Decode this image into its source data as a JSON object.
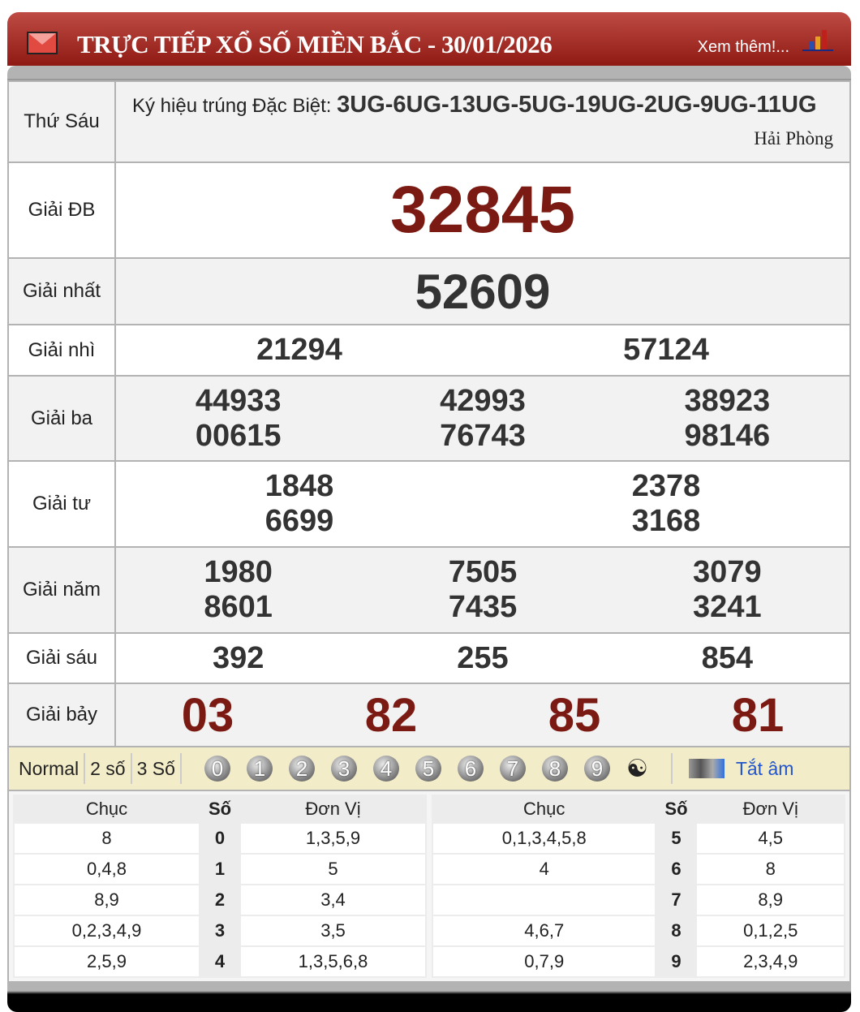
{
  "header": {
    "title": "TRỰC TIẾP XỔ SỐ MIỀN BẮC - 30/01/2026",
    "more_link": "Xem thêm!...",
    "icon": "mail-icon",
    "chart_icon": "bar-chart-icon",
    "color": "#a52a22"
  },
  "info": {
    "day": "Thứ Sáu",
    "symbol_label": "Ký hiệu trúng Đặc Biệt: ",
    "symbol_value": "3UG-6UG-13UG-5UG-19UG-2UG-9UG-11UG",
    "location": "Hải Phòng"
  },
  "prizes": [
    {
      "label": "Giải ĐB",
      "numbers": [
        "32845"
      ]
    },
    {
      "label": "Giải nhất",
      "numbers": [
        "52609"
      ]
    },
    {
      "label": "Giải nhì",
      "numbers": [
        "21294",
        "57124"
      ]
    },
    {
      "label": "Giải ba",
      "numbers": [
        "44933",
        "42993",
        "38923",
        "00615",
        "76743",
        "98146"
      ]
    },
    {
      "label": "Giải tư",
      "numbers": [
        "1848",
        "2378",
        "6699",
        "3168"
      ]
    },
    {
      "label": "Giải năm",
      "numbers": [
        "1980",
        "7505",
        "3079",
        "8601",
        "7435",
        "3241"
      ]
    },
    {
      "label": "Giải sáu",
      "numbers": [
        "392",
        "255",
        "854"
      ]
    },
    {
      "label": "Giải bảy",
      "numbers": [
        "03",
        "82",
        "85",
        "81"
      ]
    }
  ],
  "toolbar": {
    "modes": [
      "Normal",
      "2 số",
      "3 Số"
    ],
    "digits": [
      "0",
      "1",
      "2",
      "3",
      "4",
      "5",
      "6",
      "7",
      "8",
      "9"
    ],
    "mute_label": "Tắt âm"
  },
  "loto": {
    "headers": [
      "Chục",
      "Số",
      "Đơn Vị"
    ],
    "left": [
      [
        "8",
        "0",
        "1,3,5,9"
      ],
      [
        "0,4,8",
        "1",
        "5"
      ],
      [
        "8,9",
        "2",
        "3,4"
      ],
      [
        "0,2,3,4,9",
        "3",
        "3,5"
      ],
      [
        "2,5,9",
        "4",
        "1,3,5,6,8"
      ]
    ],
    "right": [
      [
        "0,1,3,4,5,8",
        "5",
        "4,5"
      ],
      [
        "4",
        "6",
        "8"
      ],
      [
        "",
        "7",
        "8,9"
      ],
      [
        "4,6,7",
        "8",
        "0,1,2,5"
      ],
      [
        "0,7,9",
        "9",
        "2,3,4,9"
      ]
    ]
  },
  "colors": {
    "special": "#7a1a12",
    "number": "#333333"
  }
}
